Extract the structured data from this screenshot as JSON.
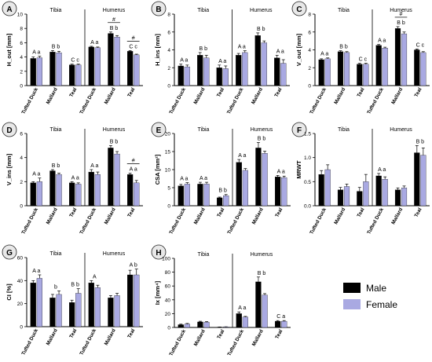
{
  "legend": {
    "male_label": "Male",
    "female_label": "Female",
    "male_color": "#000000",
    "female_color": "#a9a9e2"
  },
  "chart_data": [
    {
      "panel": "A",
      "type": "bar",
      "ylabel": "H_out [mm]",
      "ylim": [
        0,
        10
      ],
      "yticks": [
        0,
        2,
        4,
        6,
        8,
        10
      ],
      "group_titles": [
        "Tibia",
        "Humerus"
      ],
      "categories": [
        "Tufted Duck",
        "Mallard",
        "Teal",
        "Tufted Duck",
        "Mallard",
        "Teal"
      ],
      "series": [
        {
          "name": "Male",
          "values": [
            3.8,
            4.7,
            2.9,
            5.4,
            7.3,
            4.8
          ],
          "errors": [
            0.2,
            0.2,
            0.1,
            0.1,
            0.2,
            0.1
          ]
        },
        {
          "name": "Female",
          "values": [
            3.9,
            4.6,
            2.9,
            5.3,
            6.8,
            4.3
          ],
          "errors": [
            0.2,
            0.2,
            0.1,
            0.1,
            0.2,
            0.1
          ]
        }
      ],
      "letters": [
        "A a",
        "B b",
        "C c",
        "A a",
        "B b",
        "C c"
      ],
      "hash_marks": [
        4,
        5
      ]
    },
    {
      "panel": "B",
      "type": "bar",
      "ylabel": "H_ins [mm]",
      "ylim": [
        0,
        8
      ],
      "yticks": [
        0,
        2,
        4,
        6,
        8
      ],
      "group_titles": [
        "Tibia",
        "Humerus"
      ],
      "categories": [
        "Tufted Duck",
        "Mallard",
        "Teal",
        "Tufted Duck",
        "Mallard",
        "Teal"
      ],
      "series": [
        {
          "name": "Male",
          "values": [
            2.2,
            3.4,
            2.0,
            3.4,
            5.6,
            3.1
          ],
          "errors": [
            0.2,
            0.3,
            0.3,
            0.2,
            0.3,
            0.3
          ]
        },
        {
          "name": "Female",
          "values": [
            2.1,
            3.1,
            1.9,
            3.7,
            4.8,
            2.5
          ],
          "errors": [
            0.2,
            0.3,
            0.3,
            0.2,
            0.2,
            0.4
          ]
        }
      ],
      "letters": [
        "A a",
        "B b",
        "A a",
        "A a",
        "B b",
        "A a"
      ],
      "hash_marks": []
    },
    {
      "panel": "C",
      "type": "bar",
      "ylabel": "V_out [mm]",
      "ylim": [
        0,
        8
      ],
      "yticks": [
        0,
        2,
        4,
        6,
        8
      ],
      "group_titles": [
        "Tibia",
        "Humerus"
      ],
      "categories": [
        "Tufted Duck",
        "Mallard",
        "Teal",
        "Tufted Duck",
        "Mallard",
        "Teal"
      ],
      "series": [
        {
          "name": "Male",
          "values": [
            2.9,
            3.8,
            2.4,
            4.5,
            6.4,
            4.0
          ],
          "errors": [
            0.1,
            0.1,
            0.1,
            0.1,
            0.2,
            0.1
          ]
        },
        {
          "name": "Female",
          "values": [
            3.0,
            3.7,
            2.4,
            4.2,
            5.8,
            3.7
          ],
          "errors": [
            0.1,
            0.1,
            0.1,
            0.1,
            0.2,
            0.1
          ]
        }
      ],
      "letters": [
        "A a",
        "B b",
        "C c",
        "A a",
        "B b",
        "C c"
      ],
      "hash_marks": [
        4
      ]
    },
    {
      "panel": "D",
      "type": "bar",
      "ylabel": "V_ins [mm]",
      "ylim": [
        0,
        6
      ],
      "yticks": [
        0,
        2,
        4,
        6
      ],
      "group_titles": [
        "Tibia",
        "Humerus"
      ],
      "categories": [
        "Tufted Duck",
        "Mallard",
        "Teal",
        "Tufted Duck",
        "Mallard",
        "Teal"
      ],
      "series": [
        {
          "name": "Male",
          "values": [
            1.9,
            2.9,
            1.9,
            2.8,
            4.8,
            2.6
          ],
          "errors": [
            0.1,
            0.1,
            0.1,
            0.2,
            0.2,
            0.1
          ]
        },
        {
          "name": "Female",
          "values": [
            2.0,
            2.6,
            1.8,
            2.6,
            4.3,
            1.9
          ],
          "errors": [
            0.3,
            0.1,
            0.1,
            0.2,
            0.2,
            0.2
          ]
        }
      ],
      "letters": [
        "A a",
        "B b",
        "A a",
        "A a",
        "B b",
        "A a"
      ],
      "hash_marks": [
        5
      ]
    },
    {
      "panel": "E",
      "type": "bar",
      "ylabel": "CSA [mm²]",
      "ylim": [
        0,
        20
      ],
      "yticks": [
        0,
        5,
        10,
        15,
        20
      ],
      "group_titles": [
        "Tibia",
        "Humerus"
      ],
      "categories": [
        "Tufted Duck",
        "Mallard",
        "Teal",
        "Tufted Duck",
        "Mallard",
        "Teal"
      ],
      "series": [
        {
          "name": "Male",
          "values": [
            5.5,
            6.0,
            2.2,
            12.0,
            16.0,
            8.0
          ],
          "errors": [
            0.4,
            0.5,
            0.2,
            0.8,
            1.5,
            0.4
          ]
        },
        {
          "name": "Female",
          "values": [
            6.0,
            6.0,
            2.8,
            9.8,
            14.5,
            7.8
          ],
          "errors": [
            0.4,
            0.5,
            0.3,
            0.5,
            0.6,
            0.4
          ]
        }
      ],
      "letters": [
        "A a",
        "A a",
        "B b",
        "A a",
        "B b",
        "A a"
      ],
      "hash_marks": []
    },
    {
      "panel": "F",
      "type": "bar",
      "ylabel": "MRWT",
      "ylim": [
        0,
        1.5
      ],
      "yticks": [
        0.0,
        0.5,
        1.0,
        1.5
      ],
      "group_titles": [
        "Tibia",
        "Humerus"
      ],
      "categories": [
        "Tufted Duck",
        "Mallard",
        "Teal",
        "Tufted Duck",
        "Mallard",
        "Teal"
      ],
      "series": [
        {
          "name": "Male",
          "values": [
            0.65,
            0.33,
            0.3,
            0.62,
            0.33,
            1.1
          ],
          "errors": [
            0.08,
            0.05,
            0.08,
            0.05,
            0.04,
            0.15
          ]
        },
        {
          "name": "Female",
          "values": [
            0.75,
            0.4,
            0.5,
            0.55,
            0.37,
            1.05
          ],
          "errors": [
            0.1,
            0.05,
            0.15,
            0.05,
            0.04,
            0.15
          ]
        }
      ],
      "letters": [
        "",
        "",
        "",
        "A a",
        "",
        "B b"
      ],
      "hash_marks": []
    },
    {
      "panel": "G",
      "type": "bar",
      "ylabel": "CI [%]",
      "ylim": [
        0,
        60
      ],
      "yticks": [
        0,
        20,
        40,
        60
      ],
      "group_titles": [
        "Tibia",
        "Humerus"
      ],
      "categories": [
        "Tufted Duck",
        "Mallard",
        "Teal",
        "Tufted Duck",
        "Mallard",
        "Teal"
      ],
      "series": [
        {
          "name": "Male",
          "values": [
            38,
            25,
            21,
            38,
            25,
            45
          ],
          "errors": [
            2,
            3,
            2,
            2,
            2,
            4
          ]
        },
        {
          "name": "Female",
          "values": [
            42,
            28,
            29,
            34,
            27,
            45
          ],
          "errors": [
            3,
            3,
            4,
            2,
            2,
            5
          ]
        }
      ],
      "letters": [
        "A a",
        "b",
        "B b",
        "A",
        "",
        "A b"
      ],
      "hash_marks": []
    },
    {
      "panel": "H",
      "type": "bar",
      "ylabel": "Ix [mm⁴]",
      "ylim": [
        0,
        100
      ],
      "yticks": [
        0,
        20,
        40,
        60,
        80,
        100
      ],
      "group_titles": [
        "Tibia",
        "Humerus"
      ],
      "categories": [
        "Tufted Duck",
        "Mallard",
        "Teal",
        "Tufted Duck",
        "Mallard",
        "Teal"
      ],
      "series": [
        {
          "name": "Male",
          "values": [
            4,
            8,
            0.5,
            20,
            66,
            9
          ],
          "errors": [
            0.8,
            1,
            0.2,
            2.5,
            7,
            1
          ]
        },
        {
          "name": "Female",
          "values": [
            5,
            7.5,
            0.8,
            15,
            47,
            9
          ],
          "errors": [
            0.8,
            1,
            0.2,
            1,
            2,
            1
          ]
        }
      ],
      "letters": [
        "",
        "",
        "",
        "A a",
        "B b",
        "C a"
      ],
      "hash_marks": []
    }
  ]
}
